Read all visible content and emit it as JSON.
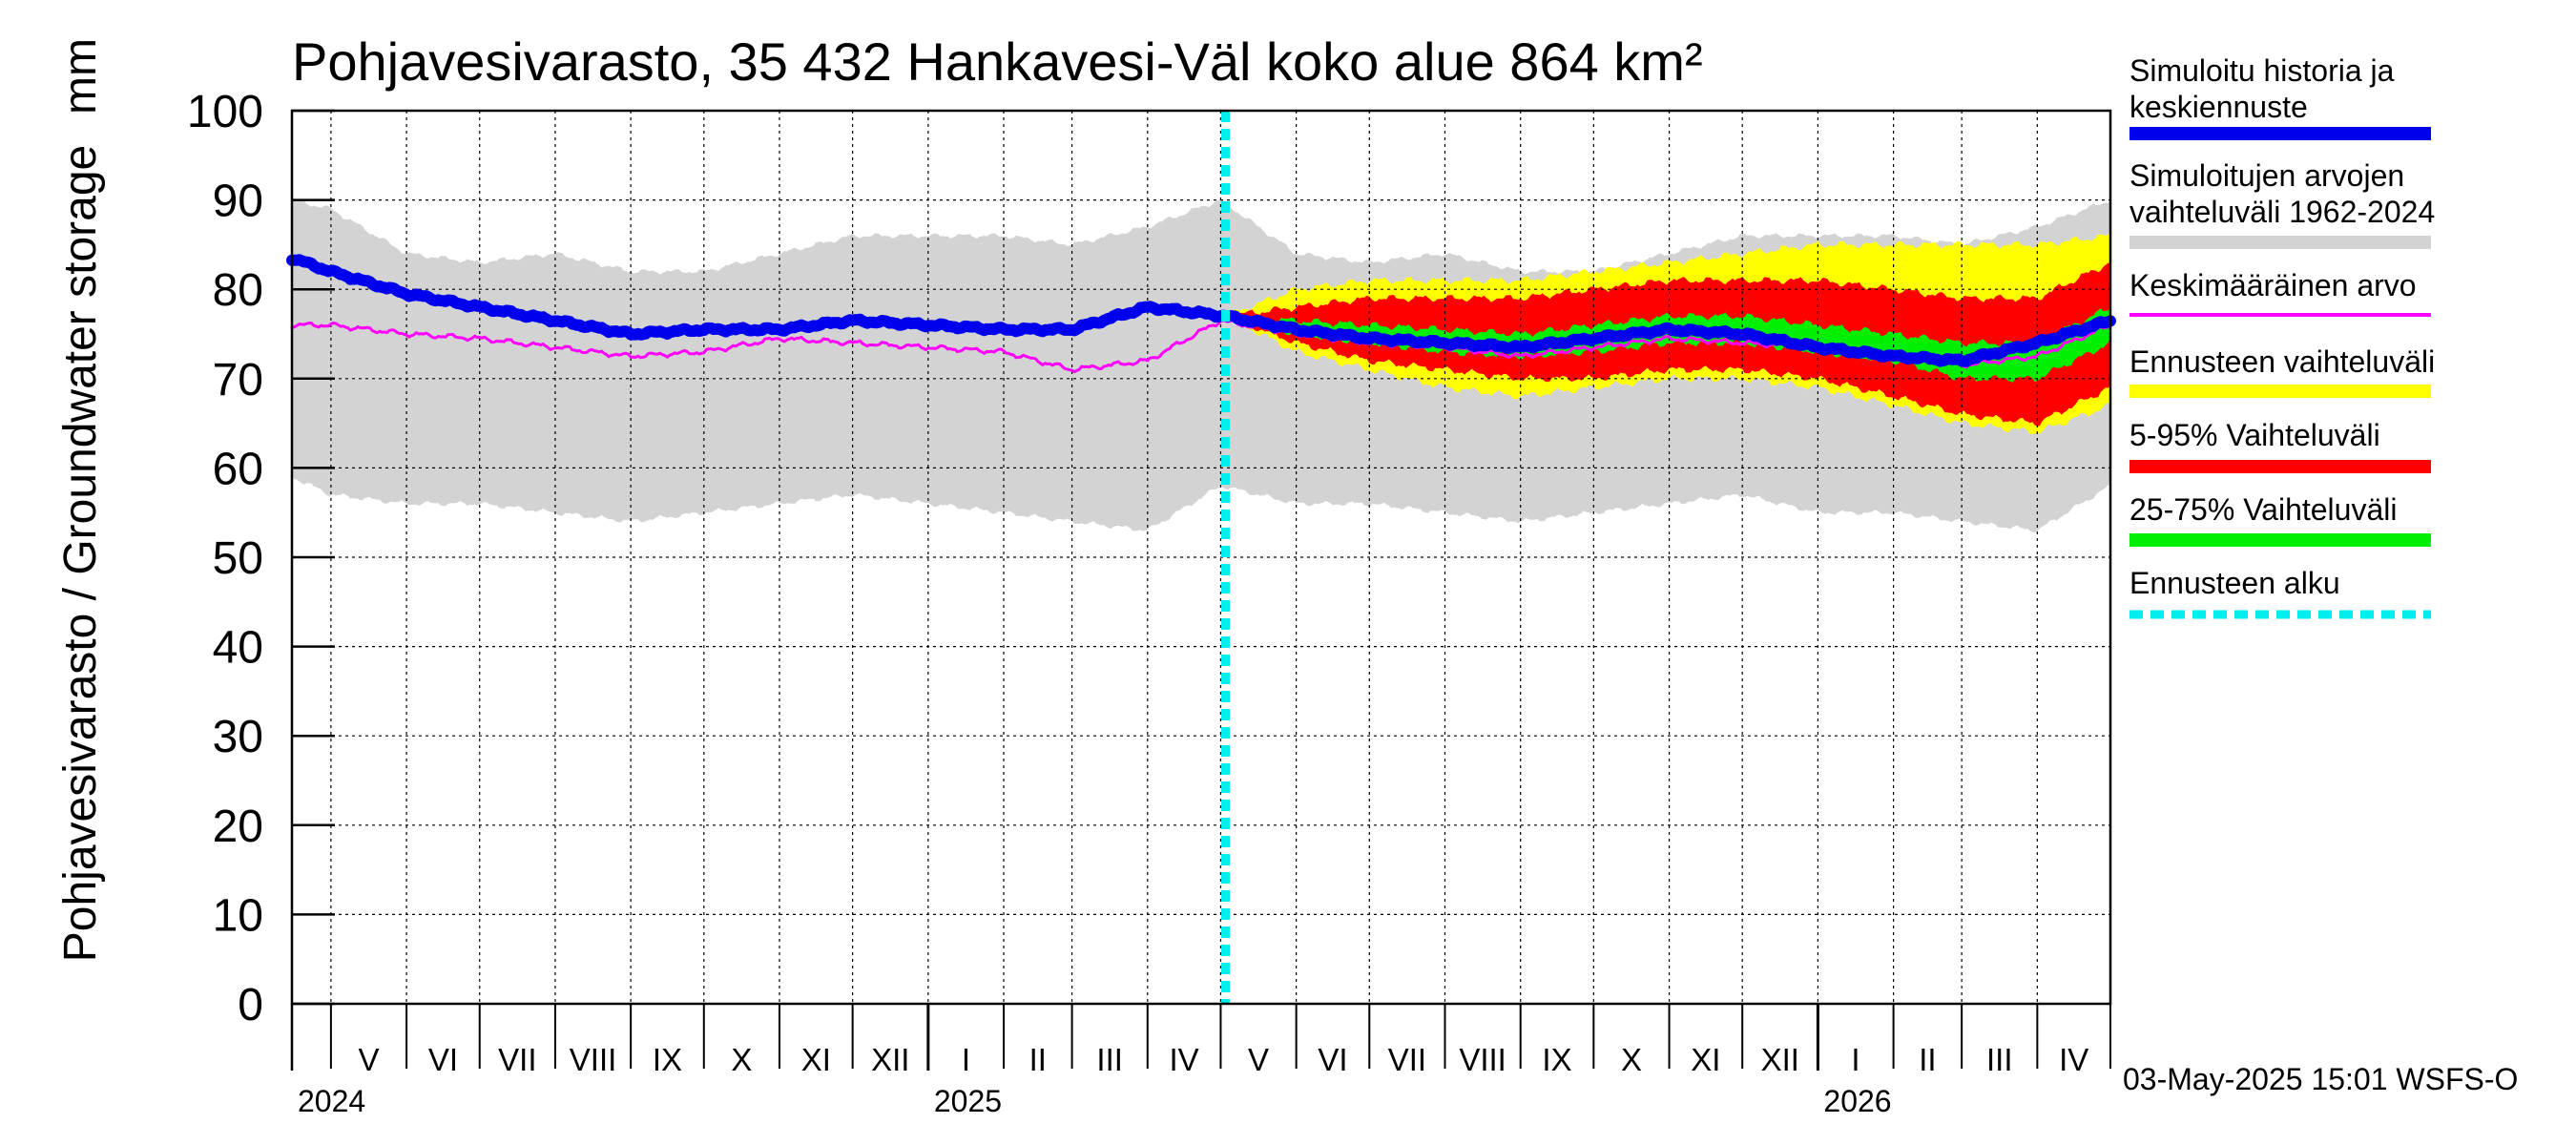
{
  "chart_data": {
    "type": "area",
    "title": "Pohjavesivarasto, 35 432 Hankavesi-Väl koko alue 864 km²",
    "ylabel": "Pohjavesivarasto / Groundwater storage",
    "yunit": "mm",
    "ylim": [
      0,
      100
    ],
    "yticks": [
      "0",
      "10",
      "20",
      "30",
      "40",
      "50",
      "60",
      "70",
      "80",
      "90",
      "100"
    ],
    "xlim": [
      "2024-04-15",
      "2026-05-01"
    ],
    "grid": true,
    "legend_placement": "right",
    "forecast_start": "2025-05-03",
    "months": [
      {
        "label": "V",
        "start": "2024-05-01",
        "end": "2024-06-01"
      },
      {
        "label": "VI",
        "start": "2024-06-01",
        "end": "2024-07-01"
      },
      {
        "label": "VII",
        "start": "2024-07-01",
        "end": "2024-08-01"
      },
      {
        "label": "VIII",
        "start": "2024-08-01",
        "end": "2024-09-01"
      },
      {
        "label": "IX",
        "start": "2024-09-01",
        "end": "2024-10-01"
      },
      {
        "label": "X",
        "start": "2024-10-01",
        "end": "2024-11-01"
      },
      {
        "label": "XI",
        "start": "2024-11-01",
        "end": "2024-12-01"
      },
      {
        "label": "XII",
        "start": "2024-12-01",
        "end": "2025-01-01"
      },
      {
        "label": "I",
        "start": "2025-01-01",
        "end": "2025-02-01"
      },
      {
        "label": "II",
        "start": "2025-02-01",
        "end": "2025-03-01"
      },
      {
        "label": "III",
        "start": "2025-03-01",
        "end": "2025-04-01"
      },
      {
        "label": "IV",
        "start": "2025-04-01",
        "end": "2025-05-01"
      },
      {
        "label": "V",
        "start": "2025-05-01",
        "end": "2025-06-01"
      },
      {
        "label": "VI",
        "start": "2025-06-01",
        "end": "2025-07-01"
      },
      {
        "label": "VII",
        "start": "2025-07-01",
        "end": "2025-08-01"
      },
      {
        "label": "VIII",
        "start": "2025-08-01",
        "end": "2025-09-01"
      },
      {
        "label": "IX",
        "start": "2025-09-01",
        "end": "2025-10-01"
      },
      {
        "label": "X",
        "start": "2025-10-01",
        "end": "2025-11-01"
      },
      {
        "label": "XI",
        "start": "2025-11-01",
        "end": "2025-12-01"
      },
      {
        "label": "XII",
        "start": "2025-12-01",
        "end": "2026-01-01"
      },
      {
        "label": "I",
        "start": "2026-01-01",
        "end": "2026-02-01"
      },
      {
        "label": "II",
        "start": "2026-02-01",
        "end": "2026-03-01"
      },
      {
        "label": "III",
        "start": "2026-03-01",
        "end": "2026-04-01"
      },
      {
        "label": "IV",
        "start": "2026-04-01",
        "end": "2026-05-01"
      }
    ],
    "years": [
      {
        "label": "2024",
        "date": "2024-04-15"
      },
      {
        "label": "2025",
        "date": "2025-01-01"
      },
      {
        "label": "2026",
        "date": "2026-01-01"
      }
    ],
    "series": [
      {
        "name": "Simuloitujen arvojen vaihteluväli 1962-2024",
        "color": "#d3d3d3",
        "kind": "band",
        "x": [
          "2024-04-15",
          "2024-05-01",
          "2024-06-01",
          "2024-07-01",
          "2024-08-01",
          "2024-09-01",
          "2024-10-01",
          "2024-11-01",
          "2024-12-01",
          "2025-01-01",
          "2025-02-01",
          "2025-03-01",
          "2025-04-01",
          "2025-05-01",
          "2025-06-01",
          "2025-07-01",
          "2025-08-01",
          "2025-09-01",
          "2025-10-01",
          "2025-11-01",
          "2025-12-01",
          "2026-01-01",
          "2026-02-01",
          "2026-03-01",
          "2026-04-01",
          "2026-05-01"
        ],
        "upper": [
          90,
          89,
          84,
          83,
          84,
          82,
          82,
          84,
          86,
          86,
          86,
          85,
          87,
          90,
          84,
          83,
          84,
          82,
          82,
          84,
          86,
          86,
          86,
          85,
          87,
          90
        ],
        "lower": [
          59,
          57,
          56,
          56,
          55,
          54,
          55,
          56,
          57,
          56,
          55,
          54,
          53,
          58,
          56,
          56,
          55,
          54,
          55,
          56,
          57,
          55,
          55,
          54,
          53,
          58
        ]
      },
      {
        "name": "Ennusteen vaihteluväli",
        "color": "#ffff00",
        "kind": "band",
        "x": [
          "2025-05-03",
          "2025-06-01",
          "2025-07-01",
          "2025-08-01",
          "2025-09-01",
          "2025-10-01",
          "2025-11-01",
          "2025-12-01",
          "2026-01-01",
          "2026-02-01",
          "2026-03-01",
          "2026-04-01",
          "2026-05-01"
        ],
        "upper": [
          77,
          80,
          81,
          81,
          81,
          82,
          83,
          84,
          85,
          85,
          85,
          85,
          86
        ],
        "lower": [
          77,
          73,
          71,
          69,
          68,
          69,
          70,
          70,
          69,
          67,
          65,
          64,
          67
        ]
      },
      {
        "name": "5-95% Vaihteluväli",
        "color": "#ff0000",
        "kind": "band",
        "x": [
          "2025-05-03",
          "2025-06-01",
          "2025-07-01",
          "2025-08-01",
          "2025-09-01",
          "2025-10-01",
          "2025-11-01",
          "2025-12-01",
          "2026-01-01",
          "2026-02-01",
          "2026-03-01",
          "2026-04-01",
          "2026-05-01"
        ],
        "upper": [
          77,
          78,
          79,
          79,
          79,
          80,
          81,
          81,
          81,
          80,
          79,
          79,
          83
        ],
        "lower": [
          77,
          74,
          72,
          71,
          70,
          70,
          71,
          71,
          70,
          68,
          66,
          65,
          69
        ]
      },
      {
        "name": "25-75% Vaihteluväli",
        "color": "#00ee00",
        "kind": "band",
        "x": [
          "2025-05-03",
          "2025-06-01",
          "2025-07-01",
          "2025-08-01",
          "2025-09-01",
          "2025-10-01",
          "2025-11-01",
          "2025-12-01",
          "2026-01-01",
          "2026-02-01",
          "2026-03-01",
          "2026-04-01",
          "2026-05-01"
        ],
        "upper": [
          77,
          76.5,
          76,
          75.5,
          75,
          76,
          77,
          77,
          76,
          75,
          74,
          74,
          78
        ],
        "lower": [
          77,
          75,
          74,
          73,
          72.5,
          73,
          74,
          74,
          73,
          72,
          70,
          70,
          74
        ]
      },
      {
        "name": "Keskimääräinen arvo",
        "color": "#ff00ff",
        "kind": "line",
        "width": 3,
        "x": [
          "2024-04-15",
          "2024-05-01",
          "2024-06-01",
          "2024-07-01",
          "2024-08-01",
          "2024-09-01",
          "2024-10-01",
          "2024-11-01",
          "2024-12-01",
          "2025-01-01",
          "2025-02-01",
          "2025-03-01",
          "2025-04-01",
          "2025-05-01",
          "2025-06-01",
          "2025-07-01",
          "2025-08-01",
          "2025-09-01",
          "2025-10-01",
          "2025-11-01",
          "2025-12-01",
          "2026-01-01",
          "2026-02-01",
          "2026-03-01",
          "2026-04-01",
          "2026-05-01"
        ],
        "values": [
          76,
          76,
          75,
          74.5,
          73.5,
          72.5,
          73,
          74.5,
          74,
          73.5,
          73,
          71,
          72,
          76.5,
          75,
          74,
          73.5,
          72.5,
          73.5,
          74.5,
          74,
          73.5,
          72.5,
          71.5,
          72.5,
          76
        ]
      },
      {
        "name": "Simuloitu historia ja keskiennuste",
        "color": "#0000ee",
        "kind": "line",
        "width": 12,
        "x": [
          "2024-04-15",
          "2024-05-01",
          "2024-06-01",
          "2024-07-01",
          "2024-08-01",
          "2024-09-01",
          "2024-10-01",
          "2024-11-01",
          "2024-12-01",
          "2025-01-01",
          "2025-02-01",
          "2025-03-01",
          "2025-04-01",
          "2025-05-03",
          "2025-06-01",
          "2025-07-01",
          "2025-08-01",
          "2025-09-01",
          "2025-10-01",
          "2025-11-01",
          "2025-12-01",
          "2026-01-01",
          "2026-02-01",
          "2026-03-01",
          "2026-04-01",
          "2026-05-01"
        ],
        "values": [
          83.5,
          82,
          79.5,
          78,
          76.5,
          75,
          75.5,
          75.5,
          76.5,
          76,
          75.5,
          75.5,
          78,
          77,
          75.5,
          74.5,
          74,
          73.5,
          74.5,
          75.5,
          75,
          73.5,
          72.5,
          72,
          74,
          76.5
        ]
      }
    ],
    "legend": [
      {
        "label": "Simuloitu historia ja keskiennuste",
        "color": "#0000ee",
        "style": "thick"
      },
      {
        "label": "Simuloitujen arvojen vaihteluväli 1962-2024",
        "color": "#d3d3d3",
        "style": "thick"
      },
      {
        "label": "Keskimääräinen arvo",
        "color": "#ff00ff",
        "style": "thin"
      },
      {
        "label": "Ennusteen vaihteluväli",
        "color": "#ffff00",
        "style": "thick"
      },
      {
        "label": "5-95% Vaihteluväli",
        "color": "#ff0000",
        "style": "thick"
      },
      {
        "label": "25-75% Vaihteluväli",
        "color": "#00ee00",
        "style": "thick"
      },
      {
        "label": "Ennusteen alku",
        "color": "#00eeee",
        "style": "dashed"
      }
    ],
    "footer": "03-May-2025 15:01 WSFS-O"
  }
}
